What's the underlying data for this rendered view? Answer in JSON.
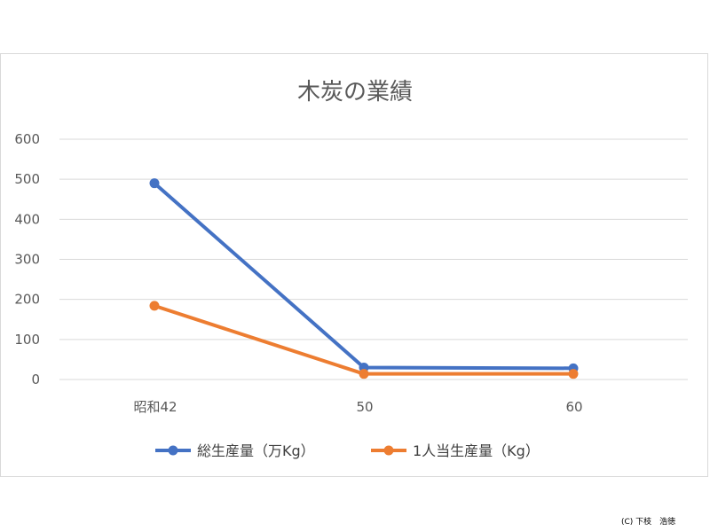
{
  "chart_data": {
    "type": "line",
    "title": "木炭の業績",
    "categories": [
      "昭和42",
      "50",
      "60"
    ],
    "series": [
      {
        "name": "総生産量（万Kg）",
        "color": "#4472C4",
        "values": [
          490,
          30,
          28
        ]
      },
      {
        "name": "1人当生産量（Kg）",
        "color": "#ED7D31",
        "values": [
          184,
          14,
          14
        ]
      }
    ],
    "y_ticks": [
      0,
      100,
      200,
      300,
      400,
      500,
      600
    ],
    "ylim": [
      0,
      600
    ],
    "grid": true,
    "legend_position": "bottom"
  },
  "copyright": "(C) 下枝　浩徳"
}
